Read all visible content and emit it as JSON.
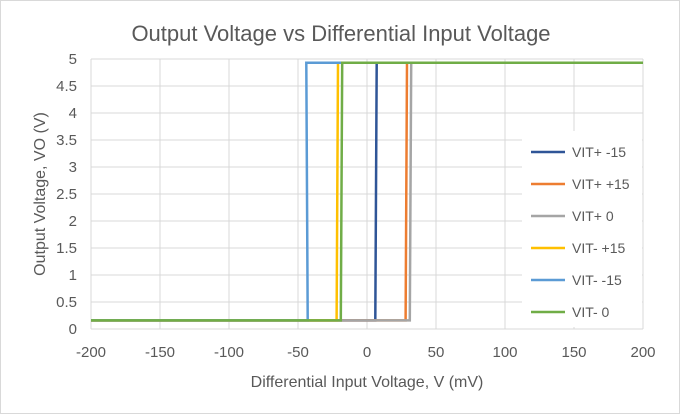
{
  "chart_data": {
    "type": "line",
    "title": "Output Voltage vs Differential Input Voltage",
    "xlabel": "Differential Input Voltage, V (mV)",
    "ylabel": "Output Voltage, VO (V)",
    "xlim": [
      -200,
      200
    ],
    "ylim": [
      0,
      5
    ],
    "x_ticks": [
      -200,
      -150,
      -100,
      -50,
      0,
      50,
      100,
      150,
      200
    ],
    "y_ticks": [
      0,
      0.5,
      1,
      1.5,
      2,
      2.5,
      3,
      3.5,
      4,
      4.5,
      5
    ],
    "y_tick_labels": [
      "0",
      "0.5",
      "1",
      "1.5",
      "2",
      "2.5",
      "3",
      "3.5",
      "4",
      "4.5",
      "5"
    ],
    "grid": true,
    "legend_position": "right",
    "series": [
      {
        "name": "VIT+ -15",
        "color": "#2f5597",
        "x": [
          -200,
          6,
          7,
          200
        ],
        "y": [
          0.16,
          0.16,
          4.93,
          4.93
        ]
      },
      {
        "name": "VIT+ +15",
        "color": "#ed7d31",
        "x": [
          -200,
          28,
          29,
          200
        ],
        "y": [
          0.16,
          0.16,
          4.93,
          4.93
        ]
      },
      {
        "name": "VIT+ 0",
        "color": "#a5a5a5",
        "x": [
          -200,
          31,
          32,
          200
        ],
        "y": [
          0.16,
          0.16,
          4.93,
          4.93
        ]
      },
      {
        "name": "VIT- +15",
        "color": "#ffc000",
        "x": [
          -200,
          -22,
          -21,
          200
        ],
        "y": [
          0.16,
          0.16,
          4.93,
          4.93
        ]
      },
      {
        "name": "VIT- -15",
        "color": "#5b9bd5",
        "x": [
          -200,
          -43,
          -44,
          200
        ],
        "y": [
          0.16,
          0.16,
          4.93,
          4.93
        ]
      },
      {
        "name": "VIT- 0",
        "color": "#70ad47",
        "x": [
          -200,
          -19,
          -18,
          200
        ],
        "y": [
          0.16,
          0.16,
          4.93,
          4.93
        ]
      }
    ]
  }
}
